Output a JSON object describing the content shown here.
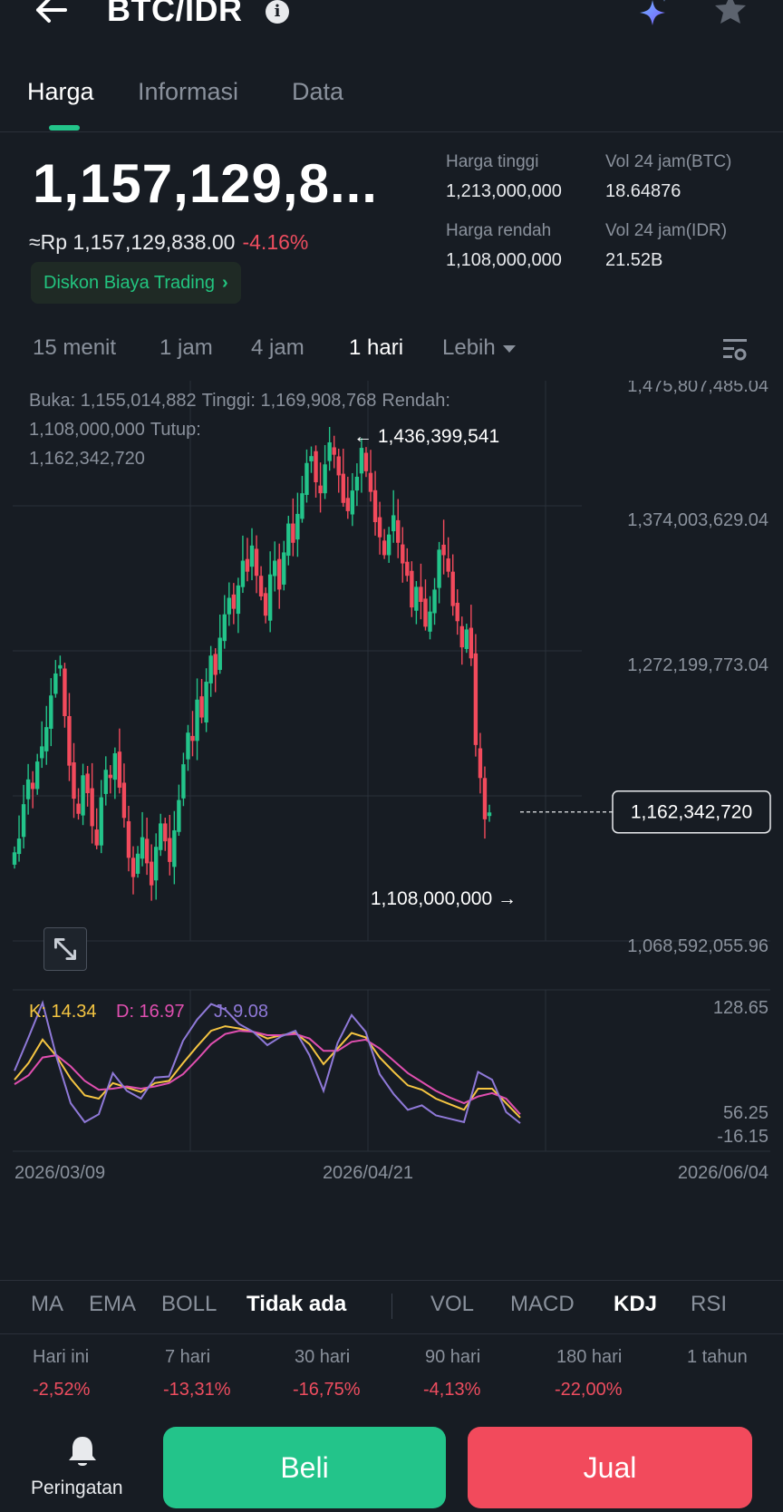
{
  "header": {
    "pair": "BTC/IDR",
    "info_glyph": "i"
  },
  "tabs": [
    {
      "label": "Harga",
      "active": true
    },
    {
      "label": "Informasi",
      "active": false
    },
    {
      "label": "Data",
      "active": false
    }
  ],
  "price": {
    "main": "1,157,129,8...",
    "approx": "≈Rp 1,157,129,838.00",
    "change": "-4.16%",
    "promo": "Diskon Biaya Trading",
    "promo_arrow": "›"
  },
  "stats": {
    "high_label": "Harga tinggi",
    "high_value": "1,213,000,000",
    "low_label": "Harga rendah",
    "low_value": "1,108,000,000",
    "vol_btc_label": "Vol 24 jam(BTC)",
    "vol_btc_value": "18.64876",
    "vol_idr_label": "Vol 24 jam(IDR)",
    "vol_idr_value": "21.52B"
  },
  "intervals": {
    "m15": "15 menit",
    "h1": "1 jam",
    "h4": "4 jam",
    "d1": "1 hari",
    "more": "Lebih"
  },
  "ohlc": {
    "open": "Buka: 1,155,014,882",
    "high": "Tinggi: 1,169,908,768",
    "low": "Rendah: 1,108,000,000",
    "close_label": "Tutup:",
    "close": "1,162,342,720"
  },
  "colors": {
    "up": "#23c48a",
    "down": "#f24a5c",
    "k": "#f5c542",
    "d": "#e04fb0",
    "j": "#8f79d8",
    "accent": "#23c48a"
  },
  "chart_data": [
    {
      "type": "candlestick",
      "y_ticks": [
        "1,475,807,485.04",
        "1,374,003,629.04",
        "1,272,199,773.04",
        "1,068,592,055.96"
      ],
      "ylim": [
        1068592055.96,
        1475807485.04
      ],
      "x_ticks": [
        "2026/03/09",
        "2026/04/21",
        "2026/06/04"
      ],
      "annotations": {
        "max_label": "1,436,399,541",
        "max_value": 1436399541,
        "min_label": "1,108,000,000",
        "min_value": 1108000000
      },
      "last_price_label": "1,162,342,720",
      "last_price": 1162342720,
      "closes": [
        1133,
        1143,
        1168,
        1186,
        1179,
        1199,
        1210,
        1224,
        1247,
        1263,
        1269,
        1232,
        1196,
        1172,
        1161,
        1189,
        1176,
        1152,
        1138,
        1173,
        1193,
        1187,
        1205,
        1180,
        1158,
        1129,
        1115,
        1132,
        1144,
        1125,
        1109,
        1137,
        1154,
        1141,
        1126,
        1149,
        1171,
        1197,
        1220,
        1214,
        1244,
        1231,
        1257,
        1276,
        1262,
        1289,
        1306,
        1318,
        1310,
        1327,
        1345,
        1337,
        1356,
        1334,
        1319,
        1305,
        1335,
        1345,
        1324,
        1351,
        1372,
        1358,
        1379,
        1394,
        1416,
        1421,
        1402,
        1394,
        1415,
        1431,
        1422,
        1407,
        1387,
        1381,
        1396,
        1406,
        1427,
        1410,
        1395,
        1373,
        1362,
        1349,
        1364,
        1378,
        1358,
        1343,
        1334,
        1311,
        1326,
        1315,
        1297,
        1308,
        1324,
        1353,
        1349,
        1337,
        1312,
        1301,
        1282,
        1295,
        1274,
        1211,
        1187,
        1157,
        1162
      ],
      "closes_unit": "millions IDR"
    },
    {
      "type": "line",
      "indicator": "KDJ",
      "y_ticks": [
        "128.65",
        "56.25",
        "-16.15"
      ],
      "ylim": [
        -16.15,
        128.65
      ],
      "series": [
        {
          "name": "K: 14.34",
          "values": [
            48,
            63,
            84,
            69,
            49,
            34,
            31,
            45,
            41,
            37,
            45,
            47,
            63,
            78,
            92,
            96,
            94,
            91,
            85,
            88,
            90,
            80,
            62,
            76,
            90,
            86,
            68,
            55,
            43,
            39,
            31,
            26,
            21,
            40,
            40,
            27,
            14
          ]
        },
        {
          "name": "D: 16.97",
          "values": [
            44,
            52,
            68,
            70,
            60,
            47,
            39,
            40,
            42,
            40,
            42,
            45,
            53,
            66,
            80,
            89,
            92,
            91,
            88,
            88,
            89,
            85,
            74,
            74,
            82,
            84,
            76,
            65,
            54,
            46,
            38,
            32,
            27,
            33,
            36,
            31,
            17
          ]
        },
        {
          "name": "J: 9.08",
          "values": [
            56,
            86,
            117,
            68,
            27,
            10,
            17,
            54,
            38,
            31,
            50,
            51,
            83,
            102,
            116,
            111,
            98,
            91,
            79,
            87,
            92,
            70,
            38,
            81,
            106,
            91,
            53,
            35,
            21,
            25,
            16,
            13,
            10,
            55,
            48,
            19,
            9
          ]
        }
      ]
    }
  ],
  "indicators_main": [
    "MA",
    "EMA",
    "BOLL",
    "Tidak ada"
  ],
  "indicators_sub": [
    "VOL",
    "MACD",
    "KDJ",
    "RSI"
  ],
  "performance": [
    {
      "label": "Hari ini",
      "value": "-2,52%"
    },
    {
      "label": "7 hari",
      "value": "-13,31%"
    },
    {
      "label": "30 hari",
      "value": "-16,75%"
    },
    {
      "label": "90 hari",
      "value": "-4,13%"
    },
    {
      "label": "180 hari",
      "value": "-22,00%"
    },
    {
      "label": "1 tahun",
      "value": ""
    }
  ],
  "footer": {
    "alert": "Peringatan",
    "buy": "Beli",
    "sell": "Jual"
  }
}
